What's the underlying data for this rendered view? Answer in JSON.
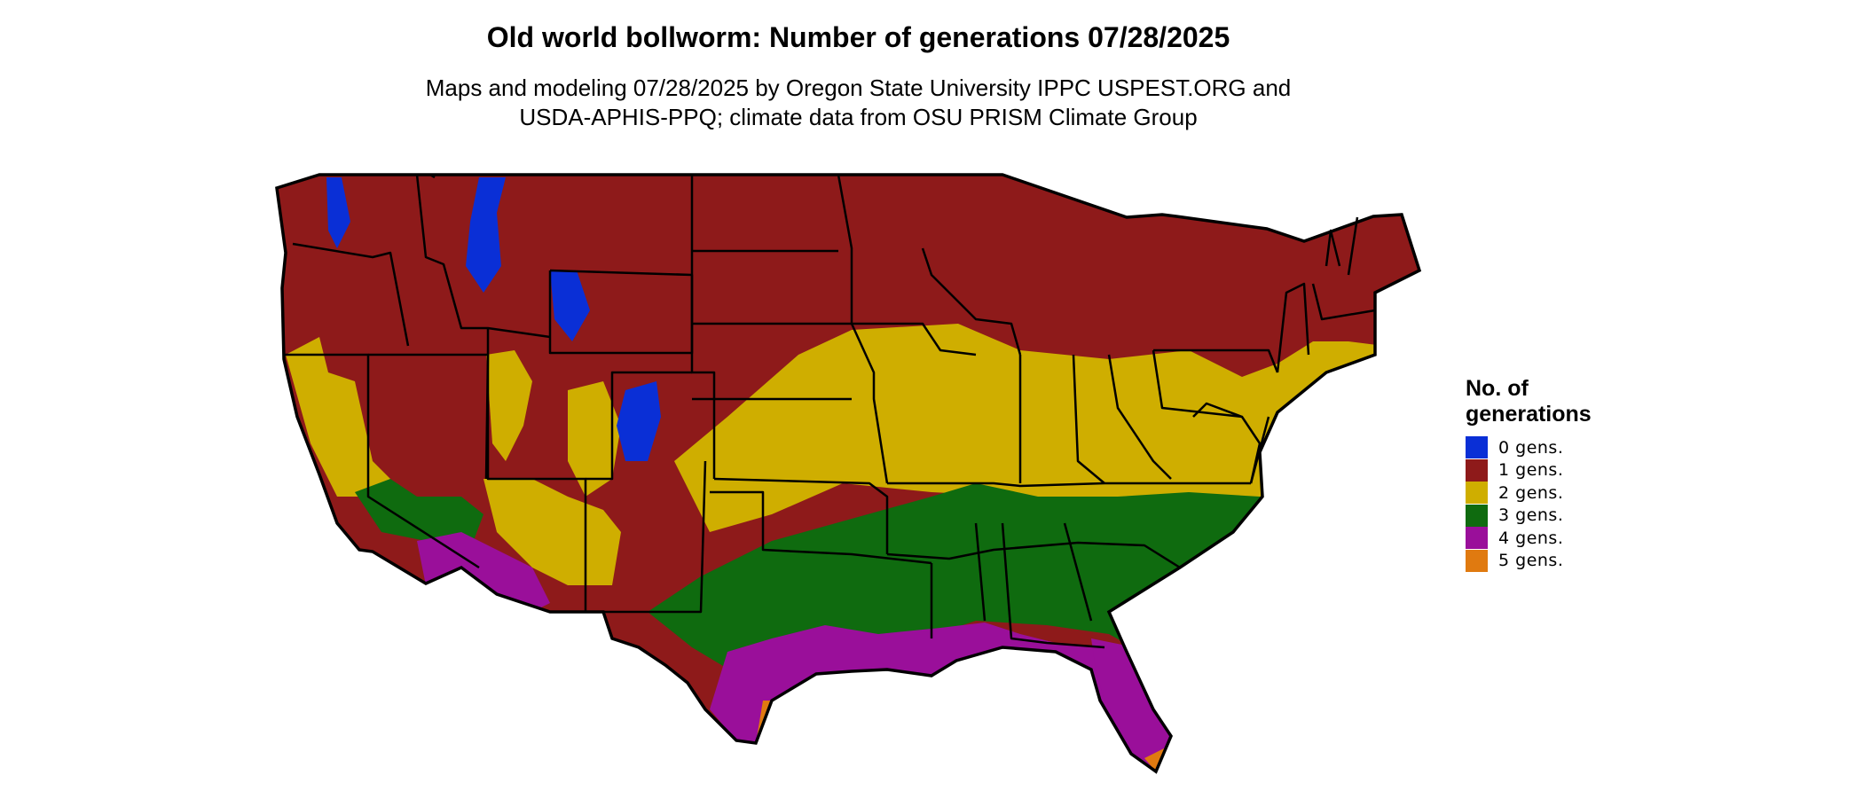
{
  "map": {
    "title": "Old world bollworm: Number of generations 07/28/2025",
    "subtitle_line1": "Maps and modeling 07/28/2025 by Oregon State University IPPC USPEST.ORG and",
    "subtitle_line2": "USDA-APHIS-PPQ; climate data from OSU PRISM Climate Group",
    "region_shown": "Contiguous United States"
  },
  "legend": {
    "title": "No. of generations",
    "position": "right",
    "items": [
      {
        "label": "0 gens.",
        "generations": 0,
        "color": "#0a2fd6"
      },
      {
        "label": "1 gens.",
        "generations": 1,
        "color": "#8e1a1a"
      },
      {
        "label": "2 gens.",
        "generations": 2,
        "color": "#cfae00"
      },
      {
        "label": "3 gens.",
        "generations": 3,
        "color": "#0f6b0f"
      },
      {
        "label": "4 gens.",
        "generations": 4,
        "color": "#9a0f9a"
      },
      {
        "label": "5 gens.",
        "generations": 5,
        "color": "#e07a10"
      }
    ]
  }
}
